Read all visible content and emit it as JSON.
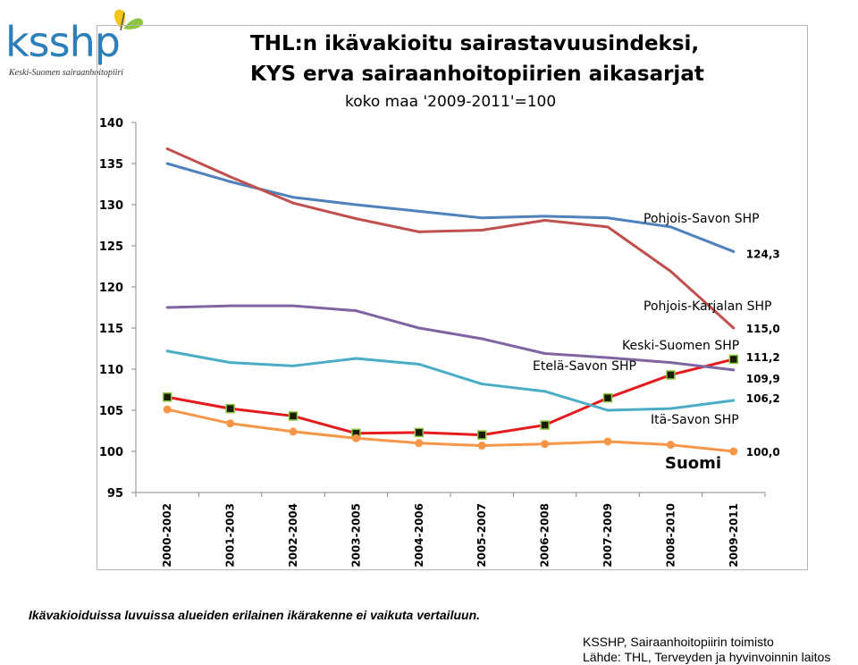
{
  "logo": {
    "text": "ksshp",
    "subtitle": "Keski-Suomen sairaanhoitopiiri",
    "colors": {
      "text": "#2c7fb8",
      "wing1": "#f5c518",
      "wing2": "#8cc63f"
    }
  },
  "chart_data": {
    "type": "line",
    "title_line1": "THL:n ikävakioitu sairastavuusindeksi,",
    "title_line2": "KYS erva sairaanhoitopiirien aikasarjat",
    "subtitle": "koko maa '2009-2011'=100",
    "categories": [
      "2000-2002",
      "2001-2003",
      "2002-2004",
      "2003-2005",
      "2004-2006",
      "2005-2007",
      "2006-2008",
      "2007-2009",
      "2008-2010",
      "2009-2011"
    ],
    "ylim": [
      95,
      140
    ],
    "yticks": [
      95,
      100,
      105,
      110,
      115,
      120,
      125,
      130,
      135,
      140
    ],
    "grid": false,
    "series": [
      {
        "name": "Pohjois-Savon SHP",
        "color": "#4f81bd",
        "marker": "none",
        "values": [
          135.0,
          132.8,
          130.9,
          130.0,
          129.2,
          128.4,
          128.6,
          128.4,
          127.3,
          124.3
        ],
        "end_label": "124,3"
      },
      {
        "name": "Pohjois-Karjalan SHP",
        "color": "#c0504d",
        "marker": "none",
        "values": [
          136.8,
          133.4,
          130.2,
          128.3,
          126.7,
          126.9,
          128.1,
          127.3,
          121.9,
          115.0
        ],
        "end_label": "115,0"
      },
      {
        "name": "Keski-Suomen SHP",
        "color": "#e41a1c",
        "marker": "square",
        "values": [
          106.6,
          105.2,
          104.3,
          102.2,
          102.3,
          102.0,
          103.2,
          106.5,
          109.3,
          111.2
        ],
        "end_label": "111,2"
      },
      {
        "name": "Etelä-Savon SHP",
        "color": "#8064a2",
        "marker": "none",
        "values": [
          117.5,
          117.7,
          117.7,
          117.1,
          115.0,
          113.7,
          111.9,
          111.4,
          110.8,
          109.9
        ],
        "end_label": "109,9"
      },
      {
        "name": "Itä-Savon SHP",
        "color": "#4bacc6",
        "marker": "none",
        "values": [
          112.2,
          110.8,
          110.4,
          111.3,
          110.6,
          108.2,
          107.3,
          105.0,
          105.2,
          106.2
        ],
        "end_label": "106,2"
      },
      {
        "name": "Suomi",
        "color": "#f79646",
        "marker": "circle",
        "values": [
          105.1,
          103.4,
          102.4,
          101.6,
          101.0,
          100.7,
          100.9,
          101.2,
          100.8,
          100.0
        ],
        "end_label": "100,0"
      }
    ]
  },
  "footnote": "Ikävakioiduissa luvuissa alueiden erilainen ikärakenne ei vaikuta vertailuun.",
  "source_line1": "KSSHP, Sairaanhoitopiirin toimisto",
  "source_line2": "Lähde:  THL, Terveyden ja hyvinvoinnin laitos"
}
